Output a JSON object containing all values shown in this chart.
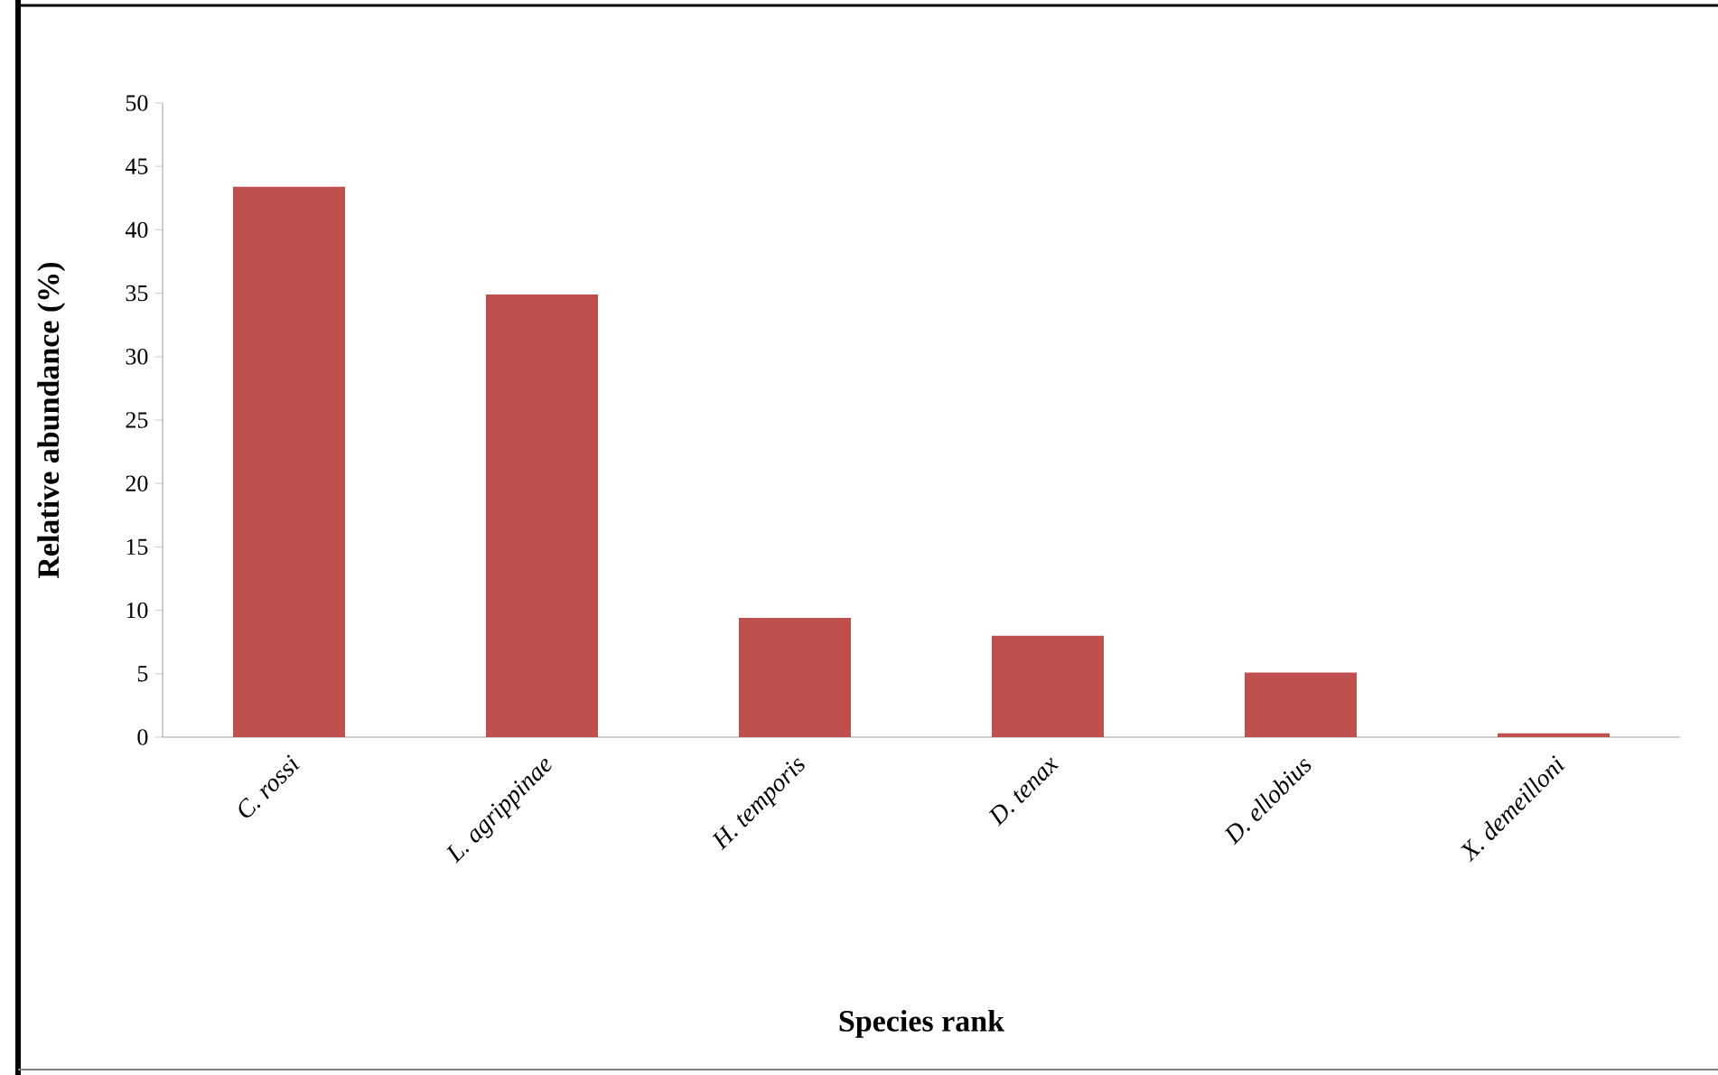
{
  "chart_data": {
    "type": "bar",
    "xlabel": "Species rank",
    "ylabel": "Relative abundance (%)",
    "categories": [
      "C. rossi",
      "L. agrippinae",
      "H. temporis",
      "D. tenax",
      "D. ellobius",
      "X. demeilloni"
    ],
    "values": [
      43.4,
      34.9,
      9.4,
      8.0,
      5.1,
      0.3
    ],
    "color": "#c0504d",
    "ylim": [
      0,
      50
    ],
    "yticks": [
      0,
      5,
      10,
      15,
      20,
      25,
      30,
      35,
      40,
      45,
      50
    ]
  }
}
